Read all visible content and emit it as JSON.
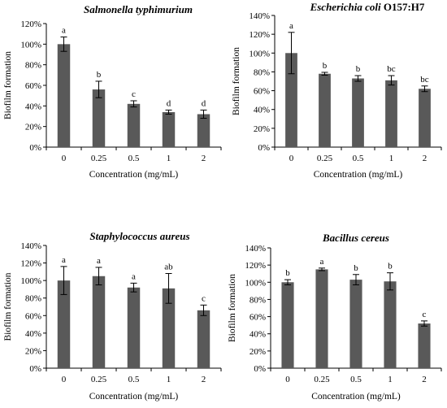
{
  "chart_data": [
    {
      "type": "bar",
      "title": "Salmonella typhimurium",
      "title_parts": [
        {
          "text": "Salmonella typhimurium",
          "italic": true
        }
      ],
      "xlabel": "Concentration (mg/mL)",
      "ylabel": "Biofilm formation",
      "categories": [
        "0",
        "0.25",
        "0.5",
        "1",
        "2"
      ],
      "values": [
        100,
        56,
        42,
        34,
        32
      ],
      "errors": [
        7,
        8,
        3,
        2,
        4
      ],
      "significance": [
        "a",
        "b",
        "c",
        "d",
        "d"
      ],
      "ylim": [
        0,
        120
      ],
      "yticks": [
        0,
        20,
        40,
        60,
        80,
        100,
        120
      ],
      "ytick_labels": [
        "0%",
        "20%",
        "40%",
        "60%",
        "80%",
        "100%",
        "120%"
      ],
      "color": "#595959",
      "grid": false
    },
    {
      "type": "bar",
      "title": "Escherichia coli O157:H7",
      "title_parts": [
        {
          "text": "Escherichia coli",
          "italic": true
        },
        {
          "text": " O157:H7",
          "italic": false
        }
      ],
      "xlabel": "Concentration (mg/mL)",
      "ylabel": "Biofilm formation",
      "categories": [
        "0",
        "0.25",
        "0.5",
        "1",
        "2"
      ],
      "values": [
        100,
        78,
        73,
        71,
        62
      ],
      "errors": [
        22,
        1.5,
        3,
        5,
        3
      ],
      "significance": [
        "a",
        "b",
        "b",
        "bc",
        "bc"
      ],
      "ylim": [
        0,
        140
      ],
      "yticks": [
        0,
        20,
        40,
        60,
        80,
        100,
        120,
        140
      ],
      "ytick_labels": [
        "0%",
        "20%",
        "40%",
        "60%",
        "80%",
        "100%",
        "120%",
        "140%"
      ],
      "color": "#595959",
      "grid": false
    },
    {
      "type": "bar",
      "title": "Staphylococcus aureus",
      "title_parts": [
        {
          "text": "Staphylococcus aureus",
          "italic": true
        }
      ],
      "xlabel": "Concentration (mg/mL)",
      "ylabel": "Biofilm formation",
      "categories": [
        "0",
        "0.25",
        "0.5",
        "1",
        "2"
      ],
      "values": [
        100,
        105,
        92,
        91,
        66
      ],
      "errors": [
        16,
        10,
        5,
        17,
        6
      ],
      "significance": [
        "a",
        "a",
        "a",
        "ab",
        "c"
      ],
      "ylim": [
        0,
        140
      ],
      "yticks": [
        0,
        20,
        40,
        60,
        80,
        100,
        120,
        140
      ],
      "ytick_labels": [
        "0%",
        "20%",
        "40%",
        "60%",
        "80%",
        "100%",
        "120%",
        "140%"
      ],
      "color": "#595959",
      "grid": false
    },
    {
      "type": "bar",
      "title": "Bacillus cereus",
      "title_parts": [
        {
          "text": "Bacillus cereus",
          "italic": true
        }
      ],
      "xlabel": "Concentration (mg/mL)",
      "ylabel": "Biofilm formation",
      "categories": [
        "0",
        "0.25",
        "0.5",
        "1",
        "2"
      ],
      "values": [
        100,
        115,
        103,
        101,
        52
      ],
      "errors": [
        3,
        1.5,
        6,
        10,
        3
      ],
      "significance": [
        "b",
        "a",
        "b",
        "b",
        "c"
      ],
      "ylim": [
        0,
        140
      ],
      "yticks": [
        0,
        20,
        40,
        60,
        80,
        100,
        120,
        140
      ],
      "ytick_labels": [
        "0%",
        "20%",
        "40%",
        "60%",
        "80%",
        "100%",
        "120%",
        "140%"
      ],
      "color": "#595959",
      "grid": false
    }
  ]
}
